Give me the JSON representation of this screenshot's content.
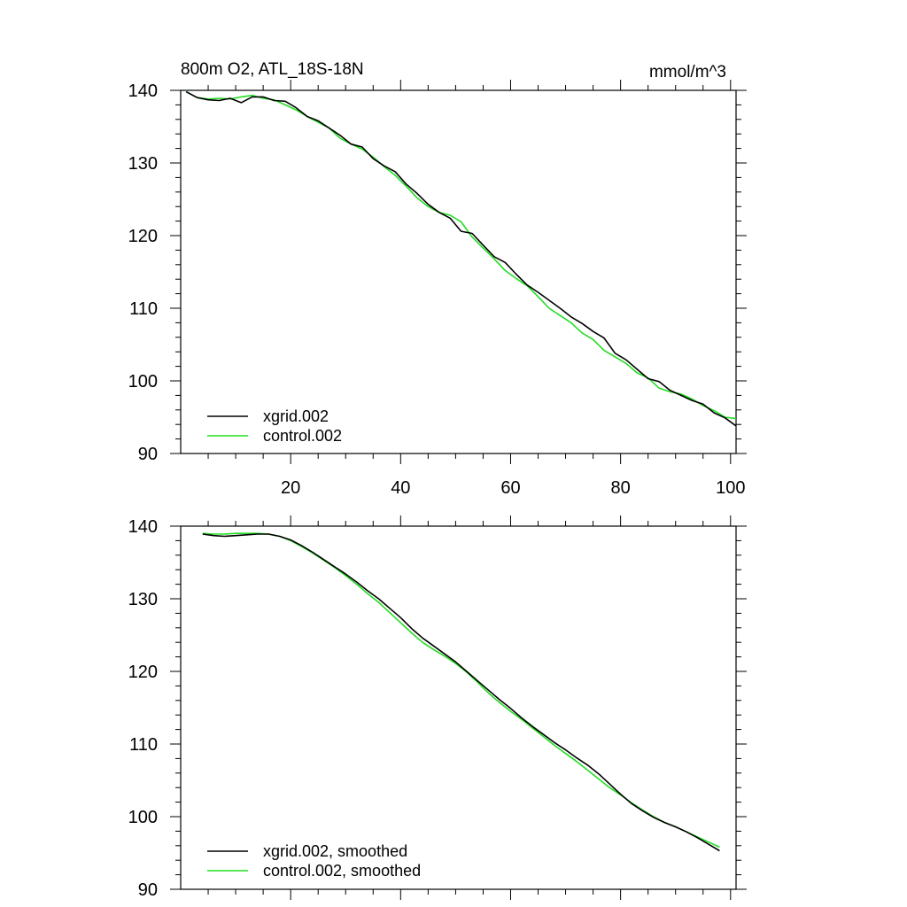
{
  "figure": {
    "title_left": "800m O2, ATL_18S-18N",
    "title_right": "mmol/m^3"
  },
  "colors": {
    "xgrid": "#000000",
    "control": "#22dd22",
    "axis": "#000000"
  },
  "chart_data": [
    {
      "type": "line",
      "name": "raw",
      "xlim": [
        0,
        101
      ],
      "ylim": [
        90,
        140
      ],
      "xticks": [
        20,
        40,
        60,
        80,
        100
      ],
      "yticks": [
        90,
        100,
        110,
        120,
        130,
        140
      ],
      "show_x_tick_labels": true,
      "legend_placement": "bottom-left",
      "series": [
        {
          "name": "xgrid.002",
          "color_key": "xgrid",
          "x": [
            1,
            3,
            5,
            7,
            9,
            11,
            13,
            15,
            17,
            19,
            21,
            23,
            25,
            27,
            29,
            31,
            33,
            35,
            37,
            39,
            41,
            43,
            45,
            47,
            49,
            51,
            53,
            55,
            57,
            59,
            61,
            63,
            65,
            67,
            69,
            71,
            73,
            75,
            77,
            79,
            81,
            83,
            85,
            87,
            89,
            91,
            93,
            95,
            97,
            99,
            101
          ],
          "y": [
            139.8,
            139.0,
            138.7,
            138.6,
            138.9,
            138.3,
            139.1,
            139.1,
            138.6,
            138.5,
            137.6,
            136.4,
            135.8,
            134.8,
            133.8,
            132.6,
            132.2,
            130.6,
            129.6,
            128.8,
            127.1,
            125.8,
            124.3,
            123.2,
            122.4,
            120.6,
            120.3,
            118.7,
            117.1,
            116.3,
            114.7,
            113.2,
            112.2,
            111.1,
            110.0,
            108.8,
            107.9,
            106.8,
            105.9,
            103.8,
            102.9,
            101.6,
            100.3,
            99.9,
            98.7,
            98.0,
            97.3,
            96.8,
            95.6,
            94.9,
            93.8
          ]
        },
        {
          "name": "control.002",
          "color_key": "control",
          "x": [
            1,
            3,
            5,
            7,
            9,
            11,
            13,
            15,
            17,
            19,
            21,
            23,
            25,
            27,
            29,
            31,
            33,
            35,
            37,
            39,
            41,
            43,
            45,
            47,
            49,
            51,
            53,
            55,
            57,
            59,
            61,
            63,
            65,
            67,
            69,
            71,
            73,
            75,
            77,
            79,
            81,
            83,
            85,
            87,
            89,
            91,
            93,
            95,
            97,
            99,
            101
          ],
          "y": [
            139.8,
            139.0,
            138.8,
            138.9,
            138.8,
            139.1,
            139.3,
            138.9,
            138.7,
            138.0,
            137.3,
            136.4,
            135.6,
            134.8,
            133.4,
            132.6,
            131.9,
            130.8,
            129.5,
            128.3,
            126.8,
            125.2,
            124.0,
            123.2,
            122.8,
            121.9,
            119.8,
            118.3,
            116.8,
            115.2,
            114.1,
            113.1,
            111.6,
            110.0,
            109.0,
            108.0,
            106.6,
            105.7,
            104.2,
            103.3,
            102.4,
            101.1,
            100.4,
            99.0,
            98.5,
            98.2,
            97.5,
            96.6,
            95.9,
            95.0,
            94.8
          ]
        }
      ]
    },
    {
      "type": "line",
      "name": "smoothed",
      "xlim": [
        0,
        101
      ],
      "ylim": [
        90,
        140
      ],
      "xticks": [
        20,
        40,
        60,
        80,
        100
      ],
      "yticks": [
        90,
        100,
        110,
        120,
        130,
        140
      ],
      "show_x_tick_labels": false,
      "legend_placement": "bottom-left",
      "series": [
        {
          "name": "xgrid.002, smoothed",
          "color_key": "xgrid",
          "x": [
            4,
            6,
            8,
            10,
            12,
            14,
            16,
            18,
            20,
            22,
            24,
            26,
            28,
            30,
            32,
            34,
            36,
            38,
            40,
            42,
            44,
            46,
            48,
            50,
            52,
            54,
            56,
            58,
            60,
            62,
            64,
            66,
            68,
            70,
            72,
            74,
            76,
            78,
            80,
            82,
            84,
            86,
            88,
            90,
            92,
            94,
            96,
            98
          ],
          "y": [
            138.9,
            138.7,
            138.6,
            138.7,
            138.8,
            138.9,
            138.9,
            138.6,
            138.1,
            137.3,
            136.4,
            135.4,
            134.4,
            133.4,
            132.3,
            131.1,
            130.0,
            128.7,
            127.4,
            125.9,
            124.6,
            123.5,
            122.4,
            121.3,
            120.0,
            118.7,
            117.4,
            116.1,
            114.9,
            113.6,
            112.4,
            111.3,
            110.2,
            109.2,
            108.1,
            107.1,
            105.9,
            104.5,
            103.1,
            101.8,
            100.8,
            99.9,
            99.2,
            98.6,
            97.9,
            97.1,
            96.2,
            95.3
          ]
        },
        {
          "name": "control.002, smoothed",
          "color_key": "control",
          "x": [
            4,
            6,
            8,
            10,
            12,
            14,
            16,
            18,
            20,
            22,
            24,
            26,
            28,
            30,
            32,
            34,
            36,
            38,
            40,
            42,
            44,
            46,
            48,
            50,
            52,
            54,
            56,
            58,
            60,
            62,
            64,
            66,
            68,
            70,
            72,
            74,
            76,
            78,
            80,
            82,
            84,
            86,
            88,
            90,
            92,
            94,
            96,
            98
          ],
          "y": [
            139.0,
            138.9,
            138.9,
            139.0,
            139.0,
            139.0,
            138.9,
            138.6,
            138.0,
            137.2,
            136.3,
            135.3,
            134.3,
            133.2,
            132.0,
            130.7,
            129.5,
            128.1,
            126.7,
            125.3,
            124.0,
            123.0,
            122.1,
            121.1,
            119.9,
            118.5,
            117.0,
            115.7,
            114.5,
            113.4,
            112.2,
            111.0,
            109.8,
            108.7,
            107.6,
            106.4,
            105.2,
            104.0,
            103.0,
            101.9,
            100.9,
            100.0,
            99.2,
            98.6,
            97.9,
            97.2,
            96.5,
            95.8
          ]
        }
      ]
    }
  ]
}
